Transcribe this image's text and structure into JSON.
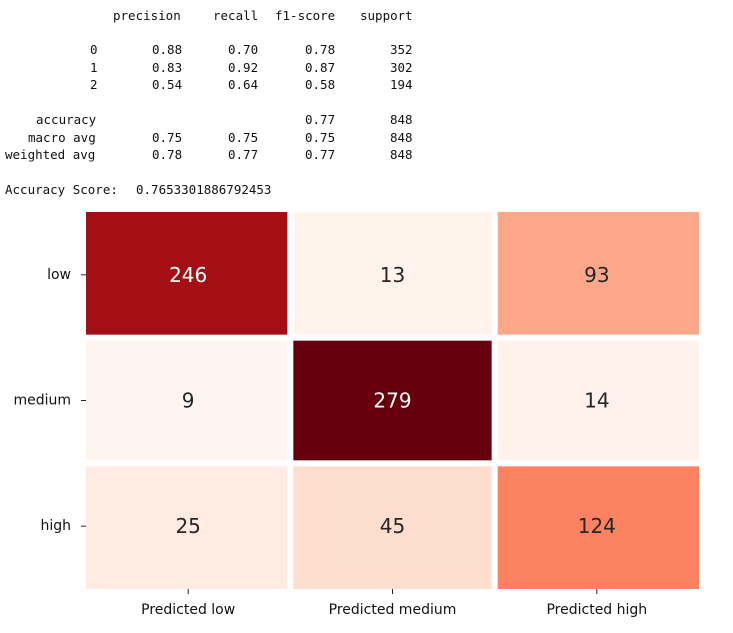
{
  "classification_report": {
    "headers": [
      "precision",
      "recall",
      "f1-score",
      "support"
    ],
    "rows": [
      {
        "label": "0",
        "precision": "0.88",
        "recall": "0.70",
        "f1": "0.78",
        "support": "352"
      },
      {
        "label": "1",
        "precision": "0.83",
        "recall": "0.92",
        "f1": "0.87",
        "support": "302"
      },
      {
        "label": "2",
        "precision": "0.54",
        "recall": "0.64",
        "f1": "0.58",
        "support": "194"
      }
    ],
    "summary_rows": [
      {
        "label": "accuracy",
        "precision": "",
        "recall": "",
        "f1": "0.77",
        "support": "848"
      },
      {
        "label": "macro avg",
        "precision": "0.75",
        "recall": "0.75",
        "f1": "0.75",
        "support": "848"
      },
      {
        "label": "weighted avg",
        "precision": "0.78",
        "recall": "0.77",
        "f1": "0.77",
        "support": "848"
      }
    ],
    "accuracy_label": "Accuracy Score:",
    "accuracy_value": "0.7653301886792453"
  },
  "chart_data": {
    "type": "heatmap",
    "colormap": "Reds",
    "x_categories": [
      "Predicted low",
      "Predicted medium",
      "Predicted high"
    ],
    "y_categories": [
      "low",
      "medium",
      "high"
    ],
    "values": [
      [
        246,
        13,
        93
      ],
      [
        9,
        279,
        14
      ],
      [
        25,
        45,
        124
      ]
    ],
    "vmin": 9,
    "vmax": 279,
    "colorbar": false,
    "grid_lines": "white",
    "title": "",
    "xlabel": "",
    "ylabel": ""
  }
}
